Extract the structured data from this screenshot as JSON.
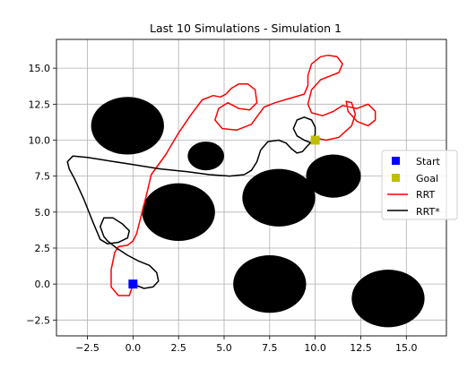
{
  "chart_data": {
    "type": "line",
    "title": "Last 10 Simulations - Simulation 1",
    "xlabel": "",
    "ylabel": "",
    "xlim": [
      -4.2,
      17.2
    ],
    "ylim": [
      -3.6,
      17.0
    ],
    "x_ticks": [
      -2.5,
      0.0,
      2.5,
      5.0,
      7.5,
      10.0,
      12.5,
      15.0
    ],
    "x_tick_labels": [
      "−2.5",
      "0.0",
      "2.5",
      "5.0",
      "7.5",
      "10.0",
      "12.5",
      "15.0"
    ],
    "y_ticks": [
      -2.5,
      0.0,
      2.5,
      5.0,
      7.5,
      10.0,
      12.5,
      15.0
    ],
    "y_tick_labels": [
      "−2.5",
      "0.0",
      "2.5",
      "5.0",
      "7.5",
      "10.0",
      "12.5",
      "15.0"
    ],
    "grid": true,
    "legend_position": "right",
    "obstacles": [
      {
        "x": -0.3,
        "y": 11.0,
        "r": 2.0
      },
      {
        "x": 4.0,
        "y": 8.9,
        "r": 1.0
      },
      {
        "x": 2.5,
        "y": 5.0,
        "r": 2.0
      },
      {
        "x": 8.0,
        "y": 6.0,
        "r": 2.0
      },
      {
        "x": 11.0,
        "y": 7.5,
        "r": 1.5
      },
      {
        "x": 7.5,
        "y": 0.0,
        "r": 2.0
      },
      {
        "x": 14.0,
        "y": -1.0,
        "r": 2.0
      }
    ],
    "obstacle_color": "#000000",
    "start": {
      "x": 0.0,
      "y": 0.0
    },
    "goal": {
      "x": 10.0,
      "y": 10.0
    },
    "series": [
      {
        "name": "Start",
        "kind": "marker",
        "color": "#0000ff"
      },
      {
        "name": "Goal",
        "kind": "marker",
        "color": "#bfbf00"
      },
      {
        "name": "RRT",
        "kind": "line",
        "color": "#ff0000",
        "x": [
          0.0,
          -0.2,
          -0.8,
          -1.2,
          -1.2,
          -1.0,
          -0.8,
          -0.3,
          0.0,
          0.2,
          0.4,
          0.6,
          0.8,
          1.0,
          1.8,
          2.5,
          3.2,
          3.8,
          4.4,
          4.8,
          5.1,
          5.4,
          5.8,
          6.3,
          6.7,
          6.8,
          6.4,
          5.8,
          5.2,
          4.7,
          4.5,
          4.9,
          5.7,
          6.5,
          6.9,
          7.2,
          7.8,
          8.6,
          9.4,
          9.6,
          9.6,
          9.8,
          10.3,
          10.7,
          11.2,
          11.5,
          11.3,
          10.9,
          10.3,
          9.8,
          9.6,
          9.8,
          10.4,
          11.0,
          11.5,
          11.9,
          12.3,
          12.9,
          13.3,
          13.3,
          12.9,
          12.3,
          11.8,
          11.7,
          12.0,
          12.2,
          12.0,
          11.3,
          10.6,
          10.2,
          10.0
        ],
        "y": [
          0.0,
          -0.8,
          -0.8,
          -0.2,
          1.0,
          2.2,
          2.6,
          2.7,
          3.0,
          3.5,
          4.5,
          5.5,
          6.5,
          7.6,
          9.0,
          10.5,
          11.8,
          12.8,
          13.1,
          13.0,
          13.2,
          13.6,
          13.9,
          13.9,
          13.5,
          12.6,
          12.1,
          12.2,
          12.6,
          12.2,
          11.4,
          10.8,
          10.7,
          11.1,
          11.8,
          12.3,
          12.6,
          12.9,
          13.2,
          13.8,
          14.5,
          15.3,
          15.8,
          15.9,
          15.8,
          15.3,
          14.7,
          14.5,
          14.2,
          13.5,
          12.5,
          11.9,
          11.7,
          12.0,
          12.4,
          12.3,
          12.2,
          12.5,
          12.0,
          11.4,
          11.0,
          11.3,
          12.0,
          12.7,
          12.6,
          11.8,
          11.0,
          10.2,
          10.0,
          10.1,
          10.0
        ]
      },
      {
        "name": "RRT*",
        "kind": "line",
        "color": "#000000",
        "x": [
          0.0,
          0.6,
          1.1,
          1.4,
          1.3,
          0.9,
          0.3,
          -0.3,
          -0.9,
          -1.4,
          -1.6,
          -1.8,
          -1.6,
          -1.1,
          -0.6,
          -0.2,
          -0.3,
          -0.8,
          -1.4,
          -1.8,
          -2.2,
          -2.7,
          -3.2,
          -3.5,
          -3.6,
          -3.3,
          -2.5,
          -1.5,
          0.0,
          1.5,
          3.0,
          4.2,
          5.3,
          6.1,
          6.5,
          6.8,
          7.0,
          7.4,
          8.0,
          8.4,
          8.7,
          9.0,
          9.3,
          9.5,
          9.8,
          10.0,
          10.0,
          9.8,
          9.4,
          9.0,
          8.8,
          9.0,
          9.4,
          9.8,
          10.0
        ],
        "y": [
          0.0,
          -0.3,
          -0.2,
          0.2,
          0.8,
          1.3,
          1.6,
          2.0,
          2.5,
          3.0,
          3.3,
          4.0,
          4.6,
          4.6,
          4.2,
          3.7,
          3.2,
          2.9,
          2.8,
          3.1,
          4.3,
          5.9,
          7.3,
          8.0,
          8.5,
          8.9,
          8.8,
          8.6,
          8.3,
          8.0,
          7.8,
          7.6,
          7.5,
          7.6,
          7.9,
          8.5,
          9.3,
          9.9,
          10.0,
          9.8,
          9.4,
          9.1,
          9.2,
          9.5,
          9.9,
          10.4,
          10.9,
          11.4,
          11.6,
          11.4,
          10.8,
          10.3,
          10.0,
          9.8,
          10.0
        ]
      }
    ]
  }
}
